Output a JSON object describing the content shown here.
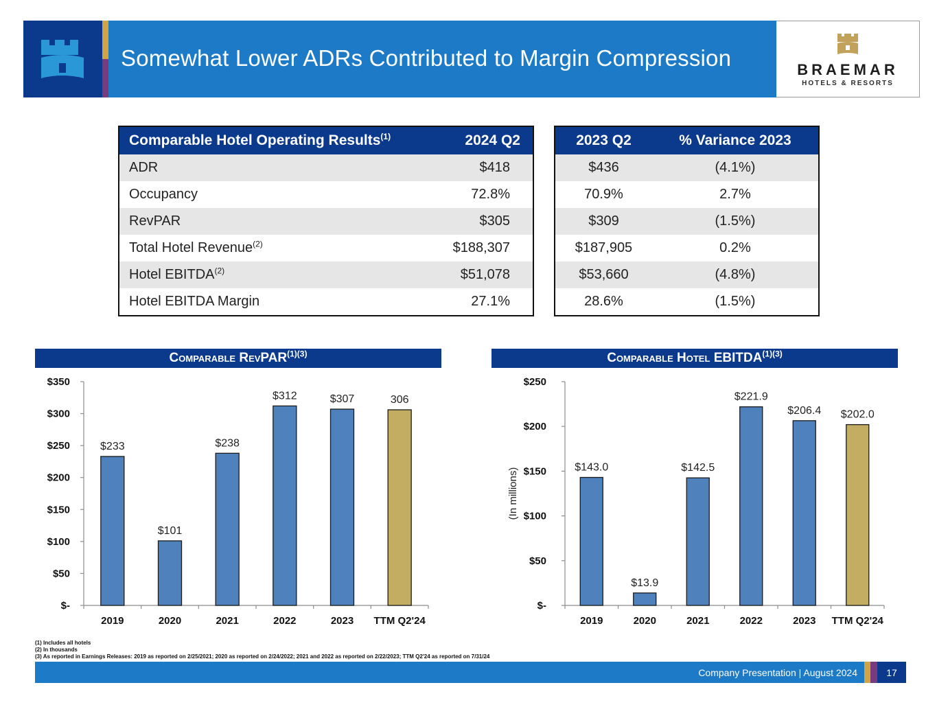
{
  "header": {
    "title": "Somewhat Lower ADRs Contributed to Margin Compression",
    "brand_name": "BRAEMAR",
    "brand_sub": "HOTELS & RESORTS",
    "colors": {
      "navy": "#0b3a8c",
      "blue": "#1c7ac6",
      "gold": "#d0a545",
      "purple": "#7a3a7e"
    }
  },
  "table_left": {
    "headers": {
      "metric": "Comparable Hotel Operating Results",
      "metric_sup": "(1)",
      "col": "2024 Q2"
    },
    "rows": [
      {
        "label": "ADR",
        "sup": "",
        "value": "$418"
      },
      {
        "label": "Occupancy",
        "sup": "",
        "value": "72.8%"
      },
      {
        "label": "RevPAR",
        "sup": "",
        "value": "$305"
      },
      {
        "label": "Total Hotel Revenue",
        "sup": "(2)",
        "value": "$188,307"
      },
      {
        "label": "Hotel EBITDA",
        "sup": "(2)",
        "value": "$51,078"
      },
      {
        "label": "Hotel EBITDA Margin",
        "sup": "",
        "value": "27.1%"
      }
    ]
  },
  "table_right": {
    "headers": {
      "col1": "2023 Q2",
      "col2": "% Variance 2023"
    },
    "rows": [
      {
        "prior": "$436",
        "variance": "(4.1%)"
      },
      {
        "prior": "70.9%",
        "variance": "2.7%"
      },
      {
        "prior": "$309",
        "variance": "(1.5%)"
      },
      {
        "prior": "$187,905",
        "variance": "0.2%"
      },
      {
        "prior": "$53,660",
        "variance": "(4.8%)"
      },
      {
        "prior": "28.6%",
        "variance": "(1.5%)"
      }
    ]
  },
  "chart_data": [
    {
      "type": "bar",
      "title": "Comparable RevPAR",
      "title_sup": "(1)(3)",
      "xlabel": "",
      "ylabel": "",
      "categories": [
        "2019",
        "2020",
        "2021",
        "2022",
        "2023",
        "TTM Q2'24"
      ],
      "values": [
        233,
        101,
        238,
        312,
        307,
        306
      ],
      "data_labels": [
        "$233",
        "$101",
        "$238",
        "$312",
        "$307",
        "306"
      ],
      "bar_colors": [
        "#4f81bd",
        "#4f81bd",
        "#4f81bd",
        "#4f81bd",
        "#4f81bd",
        "#c2ad62"
      ],
      "ylim": [
        0,
        350
      ],
      "yticks": [
        0,
        50,
        100,
        150,
        200,
        250,
        300,
        350
      ],
      "ytick_labels": [
        "$-",
        "$50",
        "$100",
        "$150",
        "$200",
        "$250",
        "$300",
        "$350"
      ],
      "grid": false,
      "legend": "none"
    },
    {
      "type": "bar",
      "title": "Comparable Hotel EBITDA",
      "title_sup": "(1)(3)",
      "xlabel": "",
      "ylabel": "(In millions)",
      "categories": [
        "2019",
        "2020",
        "2021",
        "2022",
        "2023",
        "TTM Q2'24"
      ],
      "values": [
        143.0,
        13.9,
        142.5,
        221.9,
        206.4,
        202.0
      ],
      "data_labels": [
        "$143.0",
        "$13.9",
        "$142.5",
        "$221.9",
        "$206.4",
        "$202.0"
      ],
      "bar_colors": [
        "#4f81bd",
        "#4f81bd",
        "#4f81bd",
        "#4f81bd",
        "#4f81bd",
        "#c2ad62"
      ],
      "ylim": [
        0,
        250
      ],
      "yticks": [
        0,
        50,
        100,
        150,
        200,
        250
      ],
      "ytick_labels": [
        "$-",
        "$50",
        "$100",
        "$150",
        "$200",
        "$250"
      ],
      "grid": false,
      "legend": "none"
    }
  ],
  "footnotes": [
    "(1) Includes all hotels",
    "(2) In thousands",
    "(3) As reported in Earnings Releases: 2019 as reported on 2/25/2021; 2020 as reported on 2/24/2022; 2021 and 2022 as reported on 2/22/2023; TTM Q2'24 as reported on 7/31/24"
  ],
  "footer": {
    "text": "Company Presentation  |  August 2024",
    "page_number": "17"
  }
}
